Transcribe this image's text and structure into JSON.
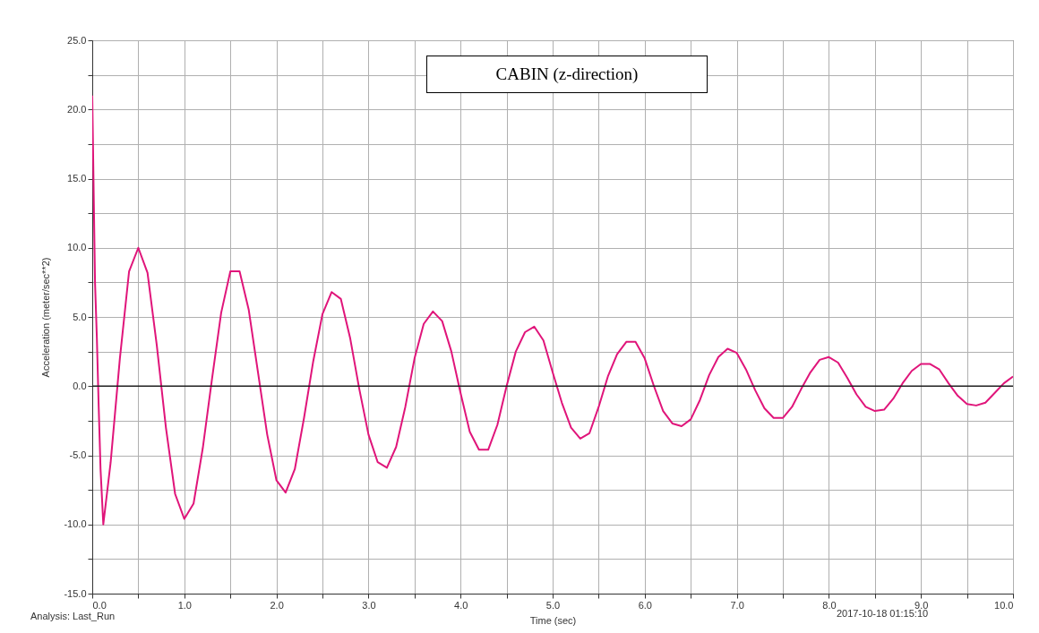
{
  "chart_data": {
    "type": "line",
    "title": "CABIN (z-direction)",
    "xlabel": "Time (sec)",
    "ylabel": "Acceleration (meter/sec**2)",
    "annotations": [
      "Analysis:  Last_Run",
      "2017-10-18 01:15:10"
    ],
    "x": [
      0,
      0.01,
      0.02,
      0.03,
      0.05,
      0.07,
      0.09,
      0.12,
      0.2,
      0.3,
      0.4,
      0.5,
      0.6,
      0.7,
      0.8,
      0.9,
      1.0,
      1.1,
      1.2,
      1.3,
      1.4,
      1.5,
      1.6,
      1.7,
      1.8,
      1.9,
      2.0,
      2.1,
      2.2,
      2.3,
      2.4,
      2.5,
      2.6,
      2.7,
      2.8,
      2.9,
      3.0,
      3.1,
      3.2,
      3.3,
      3.4,
      3.5,
      3.6,
      3.7,
      3.8,
      3.9,
      4.0,
      4.1,
      4.2,
      4.3,
      4.4,
      4.5,
      4.6,
      4.7,
      4.8,
      4.9,
      5.0,
      5.1,
      5.2,
      5.3,
      5.4,
      5.5,
      5.6,
      5.7,
      5.8,
      5.9,
      6.0,
      6.1,
      6.2,
      6.3,
      6.4,
      6.5,
      6.6,
      6.7,
      6.8,
      6.9,
      7.0,
      7.1,
      7.2,
      7.3,
      7.4,
      7.5,
      7.6,
      7.7,
      7.8,
      7.9,
      8.0,
      8.1,
      8.2,
      8.3,
      8.4,
      8.5,
      8.6,
      8.7,
      8.8,
      8.9,
      9.0,
      9.1,
      9.2,
      9.3,
      9.4,
      9.5,
      9.6,
      9.7,
      9.8,
      9.9,
      10.0
    ],
    "series": [
      {
        "color": "#e0157a",
        "values": [
          21,
          16.5,
          12,
          7.5,
          3.5,
          -1.5,
          -6,
          -10,
          -5.5,
          2,
          8.3,
          10,
          8.2,
          3,
          -3,
          -7.8,
          -9.6,
          -8.5,
          -4.5,
          0.5,
          5.3,
          8.3,
          8.3,
          5.5,
          1,
          -3.5,
          -6.8,
          -7.7,
          -6,
          -2.3,
          1.8,
          5.2,
          6.8,
          6.3,
          3.5,
          -0.2,
          -3.5,
          -5.5,
          -5.9,
          -4.4,
          -1.5,
          2,
          4.5,
          5.4,
          4.7,
          2.5,
          -0.5,
          -3.3,
          -4.6,
          -4.6,
          -2.8,
          0,
          2.5,
          3.9,
          4.3,
          3.3,
          1,
          -1.2,
          -3,
          -3.8,
          -3.4,
          -1.5,
          0.7,
          2.3,
          3.2,
          3.2,
          2,
          0,
          -1.8,
          -2.7,
          -2.9,
          -2.4,
          -1,
          0.8,
          2.1,
          2.7,
          2.4,
          1.2,
          -0.3,
          -1.6,
          -2.3,
          -2.3,
          -1.5,
          -0.2,
          1,
          1.9,
          2.1,
          1.7,
          0.6,
          -0.6,
          -1.5,
          -1.8,
          -1.7,
          -0.9,
          0.2,
          1.1,
          1.6,
          1.6,
          1.2,
          0.2,
          -0.7,
          -1.3,
          -1.4,
          -1.2,
          -0.5,
          0.2,
          0.7
        ]
      }
    ],
    "xlim": [
      0,
      10
    ],
    "ylim": [
      -15,
      25
    ],
    "xticks": [
      {
        "value": 0,
        "label": "0.0"
      },
      {
        "value": 0.5,
        "label": null
      },
      {
        "value": 1,
        "label": "1.0"
      },
      {
        "value": 1.5,
        "label": null
      },
      {
        "value": 2,
        "label": "2.0"
      },
      {
        "value": 2.5,
        "label": null
      },
      {
        "value": 3,
        "label": "3.0"
      },
      {
        "value": 3.5,
        "label": null
      },
      {
        "value": 4,
        "label": "4.0"
      },
      {
        "value": 4.5,
        "label": null
      },
      {
        "value": 5,
        "label": "5.0"
      },
      {
        "value": 5.5,
        "label": null
      },
      {
        "value": 6,
        "label": "6.0"
      },
      {
        "value": 6.5,
        "label": null
      },
      {
        "value": 7,
        "label": "7.0"
      },
      {
        "value": 7.5,
        "label": null
      },
      {
        "value": 8,
        "label": "8.0"
      },
      {
        "value": 8.5,
        "label": null
      },
      {
        "value": 9,
        "label": "9.0"
      },
      {
        "value": 9.5,
        "label": null
      },
      {
        "value": 10,
        "label": "10.0"
      }
    ],
    "yticks": [
      {
        "value": -15,
        "label": "-15.0"
      },
      {
        "value": -12.5,
        "label": null
      },
      {
        "value": -10,
        "label": "-10.0"
      },
      {
        "value": -7.5,
        "label": null
      },
      {
        "value": -5,
        "label": "-5.0"
      },
      {
        "value": -2.5,
        "label": null
      },
      {
        "value": 0,
        "label": "0.0"
      },
      {
        "value": 2.5,
        "label": null
      },
      {
        "value": 5,
        "label": "5.0"
      },
      {
        "value": 7.5,
        "label": null
      },
      {
        "value": 10,
        "label": "10.0"
      },
      {
        "value": 12.5,
        "label": null
      },
      {
        "value": 15,
        "label": "15.0"
      },
      {
        "value": 17.5,
        "label": null
      },
      {
        "value": 20,
        "label": "20.0"
      },
      {
        "value": 22.5,
        "label": null
      },
      {
        "value": 25,
        "label": "25.0"
      }
    ],
    "ref_lines": [
      {
        "axis": "y",
        "value": 0,
        "color": "#202020"
      }
    ],
    "grid": true,
    "line_style": "solid",
    "marker": "none"
  }
}
